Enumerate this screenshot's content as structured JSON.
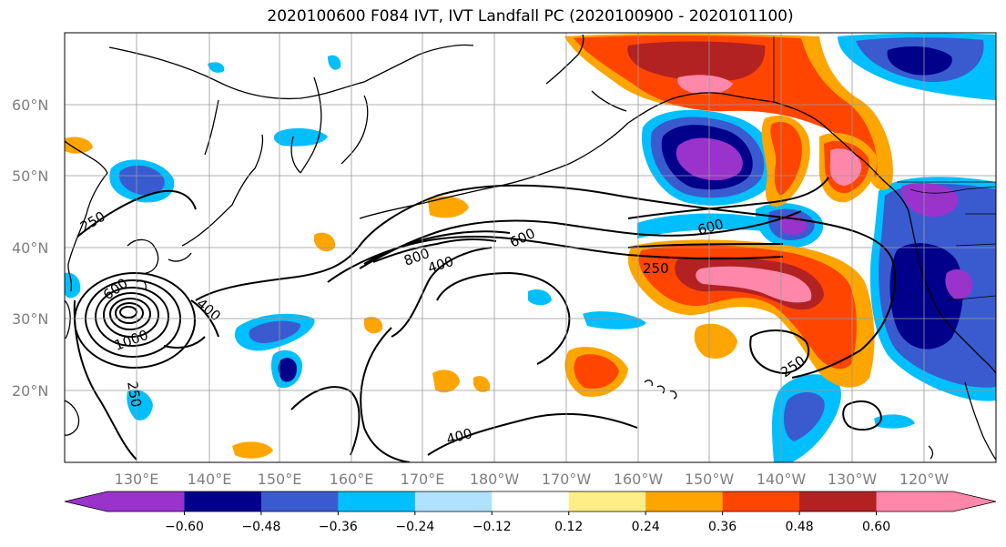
{
  "title": "2020100600 F084 IVT, IVT Landfall PC (2020100900 - 2020101100)",
  "lat_labels": [
    "60°N",
    "50°N",
    "40°N",
    "30°N",
    "20°N"
  ],
  "lon_labels": [
    "130°E",
    "140°E",
    "150°E",
    "160°E",
    "170°E",
    "180°W",
    "170°W",
    "160°W",
    "150°W",
    "140°W",
    "130°W",
    "120°W"
  ],
  "contour_labels": [
    "250",
    "800",
    "400",
    "600",
    "600",
    "250",
    "400",
    "600",
    "1000",
    "250",
    "250",
    "400"
  ],
  "colorbar": {
    "tick_labels": [
      "−0.60",
      "−0.48",
      "−0.36",
      "−0.24",
      "−0.12",
      "0.12",
      "0.24",
      "0.36",
      "0.48",
      "0.60"
    ],
    "colors": [
      "#9933cc",
      "#00008b",
      "#3a5bd0",
      "#00bfff",
      "#b0e2ff",
      "#ffffff",
      "#ffee88",
      "#ffa500",
      "#ff4500",
      "#b22222",
      "#ff88aa"
    ]
  }
}
